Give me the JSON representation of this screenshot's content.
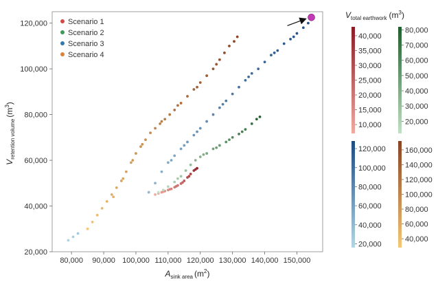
{
  "chart_data": {
    "type": "scatter",
    "title": "",
    "xlabel": {
      "main": "A",
      "sub": "sink area",
      "unit": "(m",
      "sup": "2",
      "close": ")"
    },
    "ylabel": {
      "main": "V",
      "sub": "retention volume",
      "unit": "(m",
      "sup": "3",
      "close": ")"
    },
    "xlim": [
      74000,
      158000
    ],
    "ylim": [
      20000,
      125000
    ],
    "xticks": [
      80000,
      90000,
      100000,
      110000,
      120000,
      130000,
      140000,
      150000
    ],
    "xtick_labels": [
      "80,000",
      "90,000",
      "100,000",
      "110,000",
      "120,000",
      "130,000",
      "140,000",
      "150,000"
    ],
    "yticks": [
      20000,
      40000,
      60000,
      80000,
      100000,
      120000
    ],
    "ytick_labels": [
      "20,000",
      "40,000",
      "60,000",
      "80,000",
      "100,000",
      "120,000"
    ],
    "legend": {
      "position": "top-left",
      "entries": [
        {
          "name": "Scenario 1",
          "color": "#d24a45"
        },
        {
          "name": "Scenario 2",
          "color": "#3e9a58"
        },
        {
          "name": "Scenario 3",
          "color": "#3778aa"
        },
        {
          "name": "Scenario 4",
          "color": "#d9823a"
        }
      ]
    },
    "highlight": {
      "x": 154500,
      "y": 122500,
      "color": "#c23bb5",
      "arrow": true
    },
    "series": [
      {
        "name": "Scenario 1",
        "color_low": "#f2aaa0",
        "color_high": "#8c1c24",
        "points": [
          [
            106000,
            45000,
            7000
          ],
          [
            107000,
            45500,
            9000
          ],
          [
            108000,
            46000,
            11000
          ],
          [
            109000,
            46500,
            13000
          ],
          [
            110000,
            47000,
            15000
          ],
          [
            111000,
            47500,
            17000
          ],
          [
            112000,
            48200,
            19000
          ],
          [
            113000,
            49000,
            21000
          ],
          [
            114000,
            49800,
            23000
          ],
          [
            115000,
            51000,
            26000
          ],
          [
            116000,
            52500,
            30000
          ],
          [
            117000,
            54000,
            33000
          ],
          [
            118000,
            55500,
            37000
          ],
          [
            119000,
            56500,
            41000
          ],
          [
            108500,
            46300,
            12000
          ],
          [
            110500,
            47300,
            16000
          ],
          [
            112500,
            48600,
            20000
          ],
          [
            114500,
            50300,
            24000
          ],
          [
            116500,
            53000,
            31000
          ],
          [
            118500,
            56000,
            39000
          ]
        ]
      },
      {
        "name": "Scenario 2",
        "color_low": "#c3e0c5",
        "color_high": "#1e5e2c",
        "points": [
          [
            107000,
            46000,
            12000
          ],
          [
            108500,
            47000,
            15000
          ],
          [
            110000,
            48500,
            18000
          ],
          [
            112000,
            50500,
            22000
          ],
          [
            114000,
            53000,
            26000
          ],
          [
            115500,
            55500,
            29000
          ],
          [
            117000,
            58000,
            32000
          ],
          [
            118500,
            60000,
            35000
          ],
          [
            120000,
            61500,
            38000
          ],
          [
            122000,
            63000,
            42000
          ],
          [
            124000,
            65000,
            46000
          ],
          [
            126000,
            66500,
            50000
          ],
          [
            128000,
            68000,
            54000
          ],
          [
            130000,
            70000,
            58000
          ],
          [
            132000,
            71500,
            62000
          ],
          [
            134000,
            73500,
            66000
          ],
          [
            136000,
            76000,
            72000
          ],
          [
            137500,
            78000,
            77000
          ],
          [
            138500,
            79000,
            80000
          ],
          [
            121000,
            62500,
            40000
          ],
          [
            125000,
            65500,
            48000
          ],
          [
            129000,
            69000,
            56000
          ],
          [
            133000,
            72500,
            64000
          ],
          [
            113000,
            52000,
            24000
          ]
        ]
      },
      {
        "name": "Scenario 3",
        "color_low": "#b5d6e4",
        "color_high": "#1c4a82",
        "points": [
          [
            79000,
            25000,
            20000
          ],
          [
            80500,
            26500,
            24000
          ],
          [
            82000,
            28000,
            28000
          ],
          [
            104000,
            46000,
            40000
          ],
          [
            106000,
            50000,
            44000
          ],
          [
            108000,
            55000,
            48000
          ],
          [
            110000,
            59000,
            52000
          ],
          [
            112000,
            62000,
            56000
          ],
          [
            114000,
            65000,
            60000
          ],
          [
            116000,
            68000,
            64000
          ],
          [
            118000,
            71000,
            68000
          ],
          [
            120000,
            74000,
            72000
          ],
          [
            122000,
            77000,
            76000
          ],
          [
            124000,
            80000,
            80000
          ],
          [
            126000,
            83000,
            84000
          ],
          [
            128000,
            86000,
            88000
          ],
          [
            130000,
            89000,
            92000
          ],
          [
            132000,
            92000,
            95000
          ],
          [
            134000,
            95000,
            98000
          ],
          [
            136000,
            98000,
            101000
          ],
          [
            138000,
            100000,
            104000
          ],
          [
            140000,
            103000,
            107000
          ],
          [
            142000,
            106000,
            110000
          ],
          [
            144000,
            108000,
            112000
          ],
          [
            146000,
            111000,
            115000
          ],
          [
            148000,
            113000,
            117000
          ],
          [
            150000,
            115500,
            119000
          ],
          [
            152000,
            118000,
            121000
          ],
          [
            153500,
            120000,
            123000
          ],
          [
            154500,
            121500,
            124000
          ],
          [
            111000,
            60000,
            54000
          ],
          [
            115000,
            66500,
            62000
          ],
          [
            119000,
            72500,
            70000
          ],
          [
            127000,
            84500,
            86000
          ],
          [
            135000,
            96500,
            100000
          ],
          [
            143000,
            107000,
            111000
          ],
          [
            149000,
            114000,
            118000
          ]
        ]
      },
      {
        "name": "Scenario 4",
        "color_low": "#f5c878",
        "color_high": "#8a4325",
        "points": [
          [
            85000,
            30000,
            30000
          ],
          [
            86500,
            33000,
            35000
          ],
          [
            88000,
            36000,
            40000
          ],
          [
            89500,
            39000,
            45000
          ],
          [
            91000,
            42000,
            50000
          ],
          [
            92500,
            45000,
            55000
          ],
          [
            94000,
            48000,
            60000
          ],
          [
            95500,
            51000,
            65000
          ],
          [
            97000,
            55000,
            70000
          ],
          [
            98500,
            59000,
            75000
          ],
          [
            100000,
            63000,
            80000
          ],
          [
            101500,
            66000,
            85000
          ],
          [
            103000,
            69000,
            90000
          ],
          [
            104500,
            72000,
            95000
          ],
          [
            106000,
            74000,
            100000
          ],
          [
            107500,
            76000,
            105000
          ],
          [
            109000,
            78000,
            110000
          ],
          [
            110500,
            80000,
            115000
          ],
          [
            112000,
            82000,
            120000
          ],
          [
            114000,
            85000,
            125000
          ],
          [
            116000,
            88000,
            130000
          ],
          [
            118000,
            91000,
            135000
          ],
          [
            120000,
            94000,
            140000
          ],
          [
            122000,
            97000,
            145000
          ],
          [
            124000,
            100000,
            150000
          ],
          [
            126000,
            104000,
            155000
          ],
          [
            127500,
            107000,
            160000
          ],
          [
            129000,
            110000,
            163000
          ],
          [
            130500,
            112000,
            166000
          ],
          [
            131500,
            114000,
            169000
          ],
          [
            93000,
            44000,
            52000
          ],
          [
            96000,
            52000,
            66000
          ],
          [
            99000,
            60000,
            76000
          ],
          [
            102000,
            67000,
            86000
          ],
          [
            108000,
            77000,
            108000
          ],
          [
            113000,
            84000,
            122000
          ],
          [
            119000,
            92000,
            138000
          ],
          [
            125000,
            102000,
            152000
          ]
        ]
      }
    ]
  },
  "colorbars": {
    "title": {
      "main": "V",
      "sub": "total earthwork",
      "unit": "(m",
      "sup": "3",
      "close": ")"
    },
    "bars": [
      {
        "series": "Scenario 1",
        "min": 7000,
        "max": 43000,
        "ticks": [
          10000,
          15000,
          20000,
          25000,
          30000,
          35000,
          40000
        ],
        "tick_labels": [
          "10,000",
          "15,000",
          "20,000",
          "25,000",
          "30,000",
          "35,000",
          "40,000"
        ],
        "color_low": "#f2aaa0",
        "color_high": "#8c1c24"
      },
      {
        "series": "Scenario 2",
        "min": 12000,
        "max": 82000,
        "ticks": [
          20000,
          30000,
          40000,
          50000,
          60000,
          70000,
          80000
        ],
        "tick_labels": [
          "20,000",
          "30,000",
          "40,000",
          "50,000",
          "60,000",
          "70,000",
          "80,000"
        ],
        "color_low": "#c3e0c5",
        "color_high": "#1e5e2c"
      },
      {
        "series": "Scenario 3",
        "min": 16000,
        "max": 128000,
        "ticks": [
          20000,
          40000,
          60000,
          80000,
          100000,
          120000
        ],
        "tick_labels": [
          "20,000",
          "40,000",
          "60,000",
          "80,000",
          "100,000",
          "120,000"
        ],
        "color_low": "#b5d6e4",
        "color_high": "#1c4a82"
      },
      {
        "series": "Scenario 4",
        "min": 28000,
        "max": 172000,
        "ticks": [
          40000,
          60000,
          80000,
          100000,
          120000,
          140000,
          160000
        ],
        "tick_labels": [
          "40,000",
          "60,000",
          "80,000",
          "100,000",
          "120,000",
          "140,000",
          "160,000"
        ],
        "color_low": "#f5c878",
        "color_high": "#8a4325"
      }
    ]
  }
}
